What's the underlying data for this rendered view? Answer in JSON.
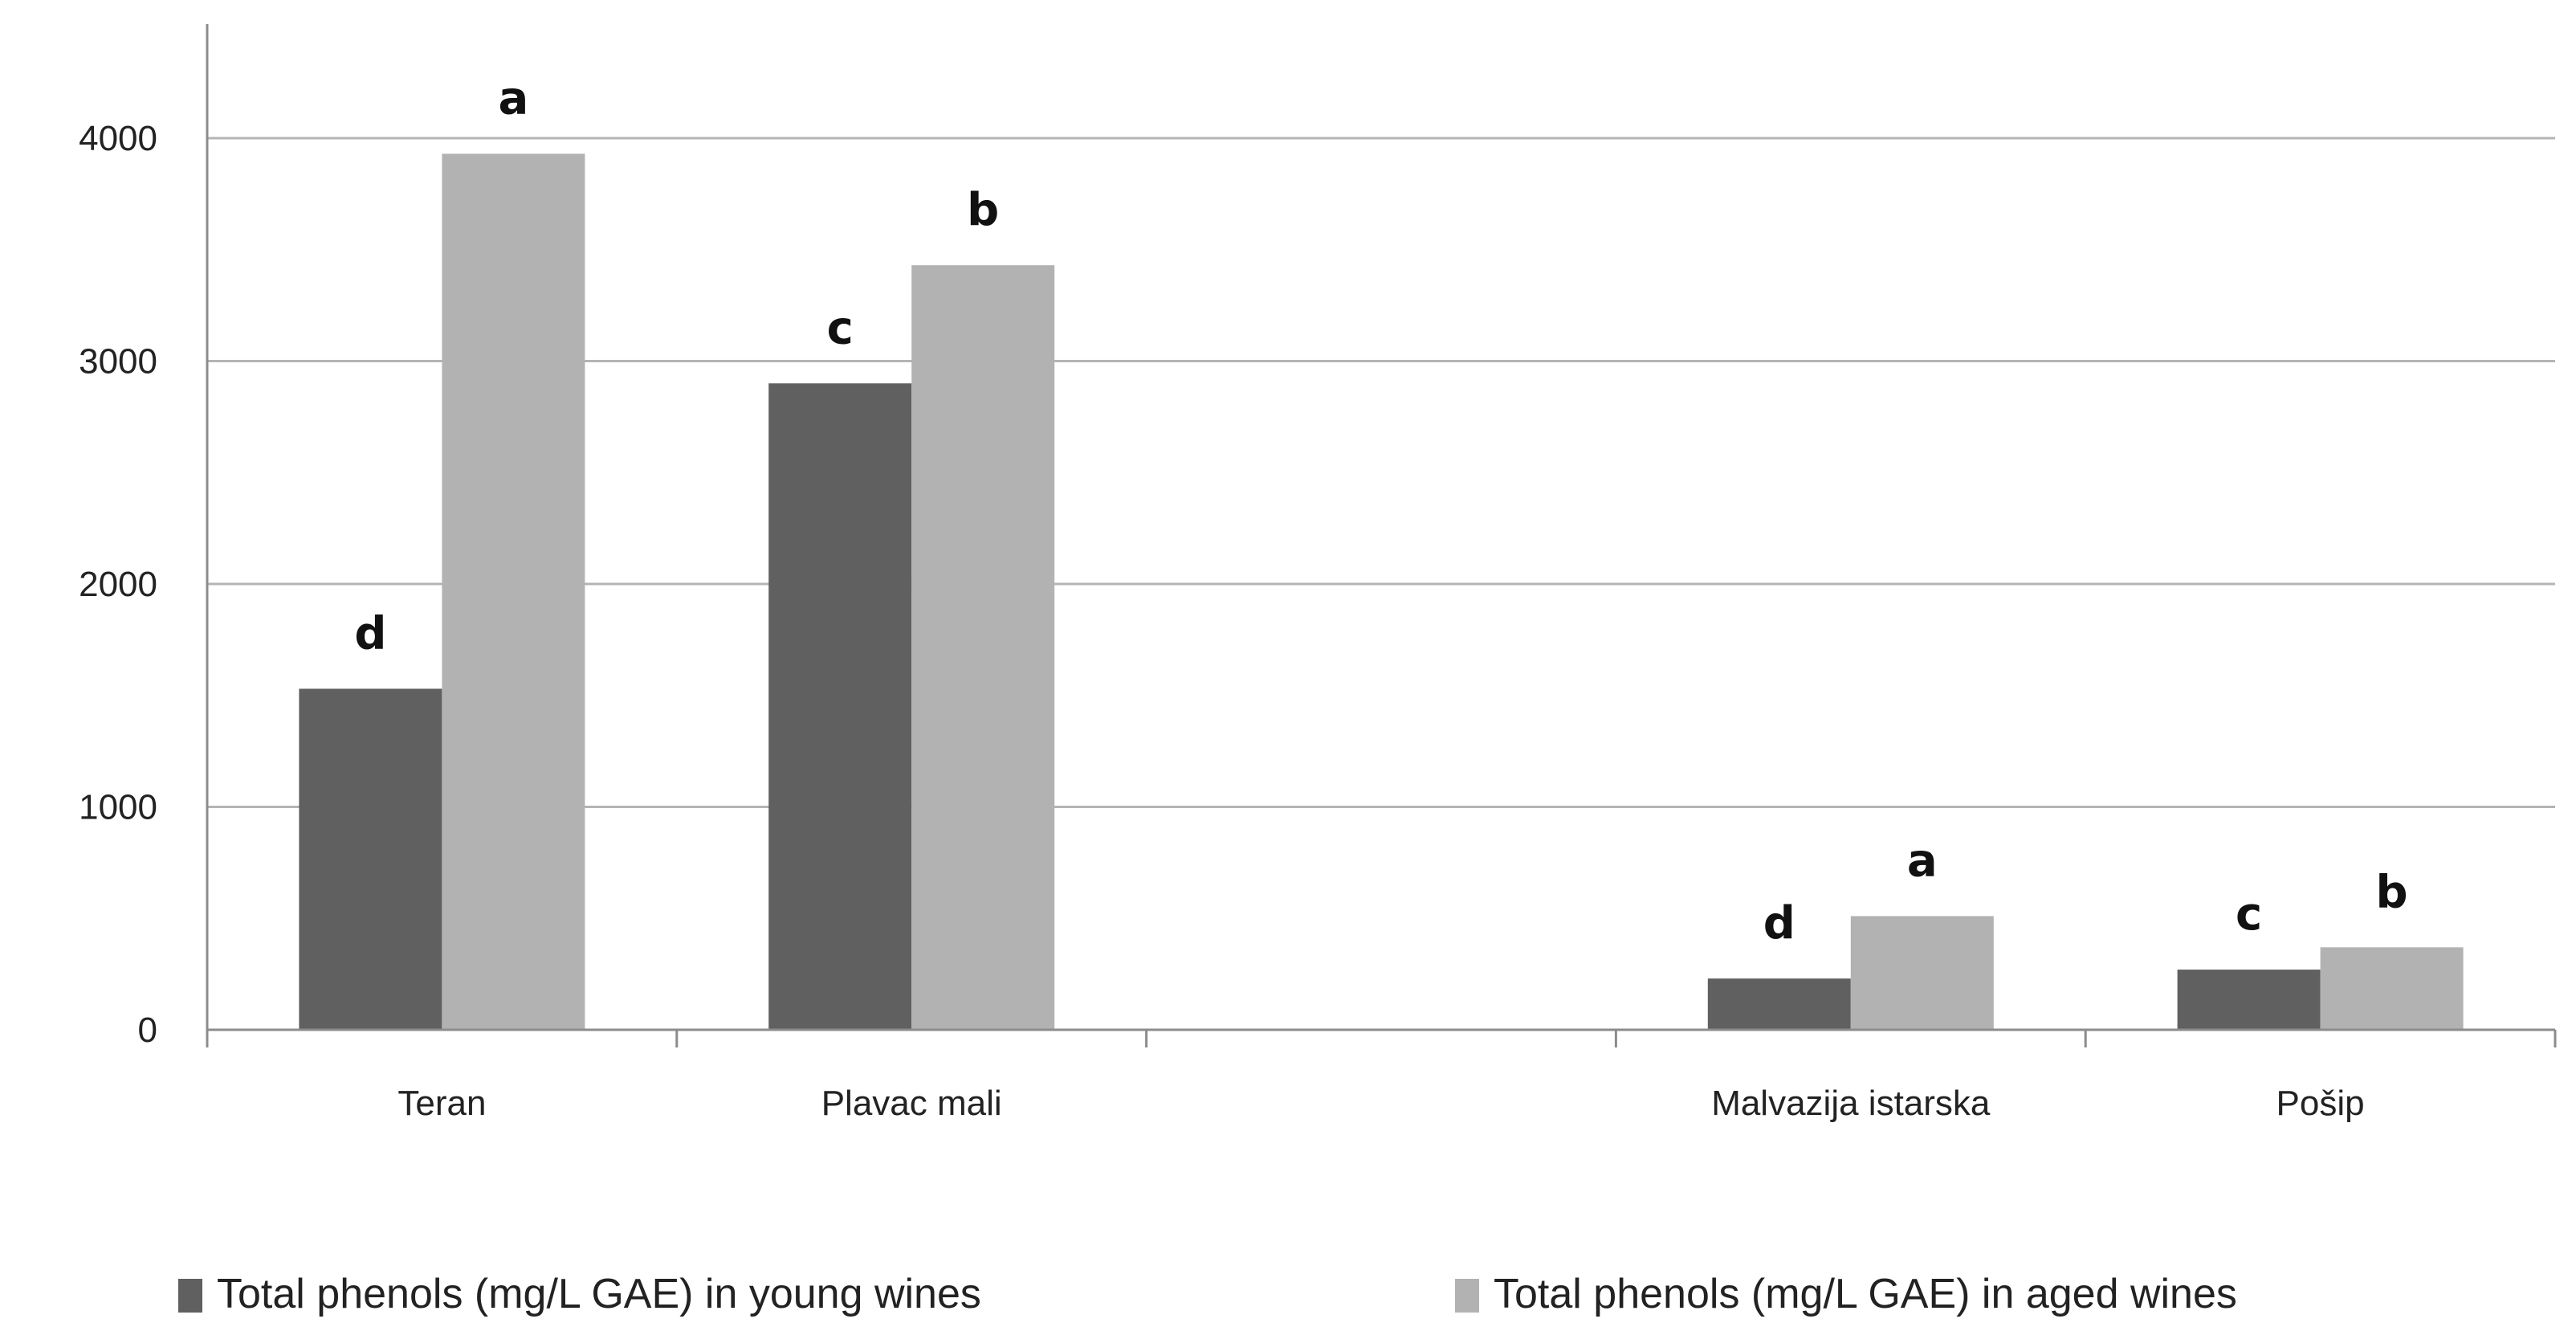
{
  "chart_data": {
    "type": "bar",
    "categories": [
      "Teran",
      "Plavac mali",
      "",
      "Malvazija istarska",
      "Pošip"
    ],
    "series": [
      {
        "name": "Total phenols (mg/L GAE) in young wines",
        "color": "#606060",
        "values": [
          1530,
          2900,
          null,
          230,
          270
        ],
        "labels": [
          "d",
          "c",
          "",
          "d",
          "c"
        ]
      },
      {
        "name": "Total phenols (mg/L GAE) in aged wines",
        "color": "#b2b2b2",
        "values": [
          3930,
          3430,
          null,
          510,
          370
        ],
        "labels": [
          "a",
          "b",
          "",
          "a",
          "b"
        ]
      }
    ],
    "y_ticks": [
      "0",
      "1000",
      "2000",
      "3000",
      "4000"
    ],
    "ylim": [
      0,
      4500
    ],
    "grid": true,
    "legend_position": "bottom"
  }
}
